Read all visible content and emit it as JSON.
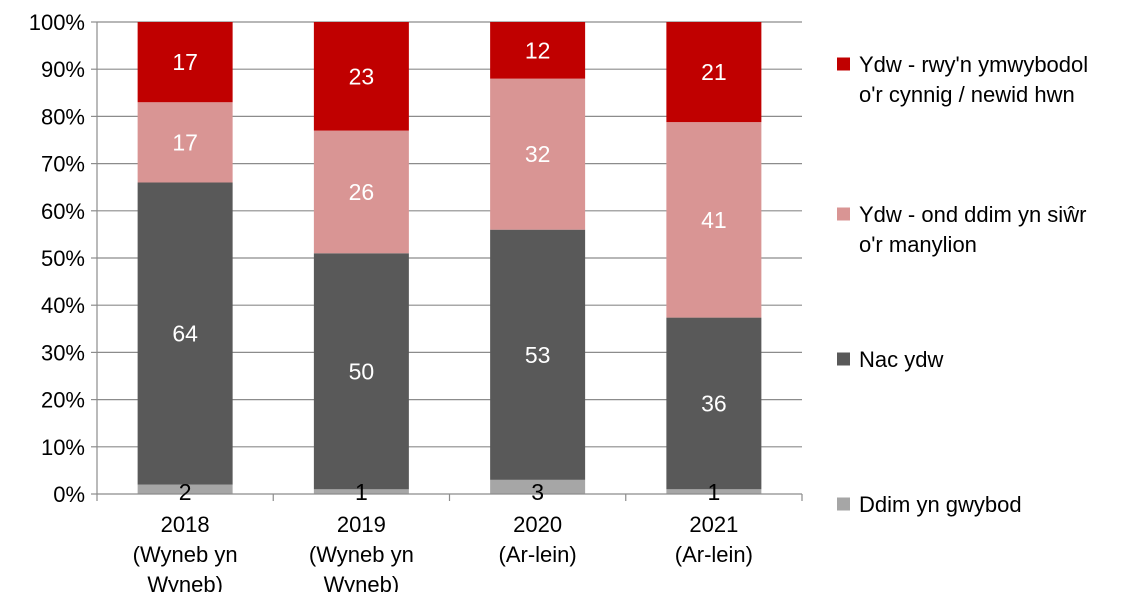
{
  "chart_data": {
    "type": "bar",
    "stacked": true,
    "normalized": true,
    "categories": [
      [
        "2018",
        "(Wyneb yn",
        "Wyneb)"
      ],
      [
        "2019",
        "(Wyneb yn",
        "Wyneb)"
      ],
      [
        "2020",
        "(Ar-lein)"
      ],
      [
        "2021",
        "(Ar-lein)"
      ]
    ],
    "series": [
      {
        "name": "Ddim yn gwybod",
        "color": "#a6a6a6",
        "values": [
          2,
          1,
          3,
          1
        ],
        "label_color": "#000000"
      },
      {
        "name": "Nac ydw",
        "color": "#595959",
        "values": [
          64,
          50,
          53,
          36
        ],
        "label_color": "#ffffff"
      },
      {
        "name": "Ydw - ond ddim yn siŵr o'r manylion",
        "legend_lines": [
          "Ydw - ond ddim yn siŵr",
          "o'r manylion"
        ],
        "color": "#d99594",
        "values": [
          17,
          26,
          32,
          41
        ],
        "label_color": "#ffffff"
      },
      {
        "name": "Ydw - rwy'n ymwybodol o'r cynnig / newid hwn",
        "legend_lines": [
          "Ydw - rwy'n ymwybodol",
          "o'r cynnig / newid hwn"
        ],
        "color": "#c00000",
        "values": [
          17,
          23,
          12,
          21
        ],
        "label_color": "#ffffff"
      }
    ],
    "yticks": [
      "0%",
      "10%",
      "20%",
      "30%",
      "40%",
      "50%",
      "60%",
      "70%",
      "80%",
      "90%",
      "100%"
    ],
    "ylim": [
      0,
      100
    ],
    "grid": true,
    "legend": "right",
    "title": "",
    "xlabel": "",
    "ylabel": ""
  }
}
